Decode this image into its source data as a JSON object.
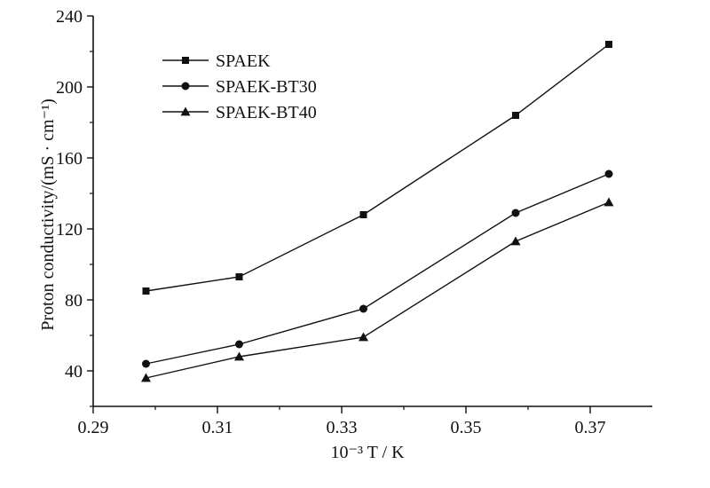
{
  "chart_data": {
    "type": "line",
    "title": "",
    "xlabel": "10⁻³ T / K",
    "ylabel": "Proton conductivity/(mS · cm⁻¹)",
    "xlim": [
      0.29,
      0.38
    ],
    "ylim": [
      20,
      240
    ],
    "x_ticks": [
      0.29,
      0.31,
      0.33,
      0.35,
      0.37
    ],
    "x_tick_labels": [
      "0.29",
      "0.31",
      "0.33",
      "0.35",
      "0.37"
    ],
    "y_ticks": [
      40,
      80,
      120,
      160,
      200,
      240
    ],
    "y_tick_labels": [
      "40",
      "80",
      "120",
      "160",
      "200",
      "240"
    ],
    "grid": false,
    "legend_position": "top-left",
    "x": [
      0.2985,
      0.3135,
      0.3335,
      0.358,
      0.373
    ],
    "series": [
      {
        "name": "SPAEK",
        "marker": "square",
        "values": [
          85,
          93,
          128,
          184,
          224
        ]
      },
      {
        "name": "SPAEK-BT30",
        "marker": "circle",
        "values": [
          44,
          55,
          75,
          129,
          151
        ]
      },
      {
        "name": "SPAEK-BT40",
        "marker": "triangle",
        "values": [
          36,
          48,
          59,
          113,
          135
        ]
      }
    ],
    "line_color": "#111111"
  }
}
